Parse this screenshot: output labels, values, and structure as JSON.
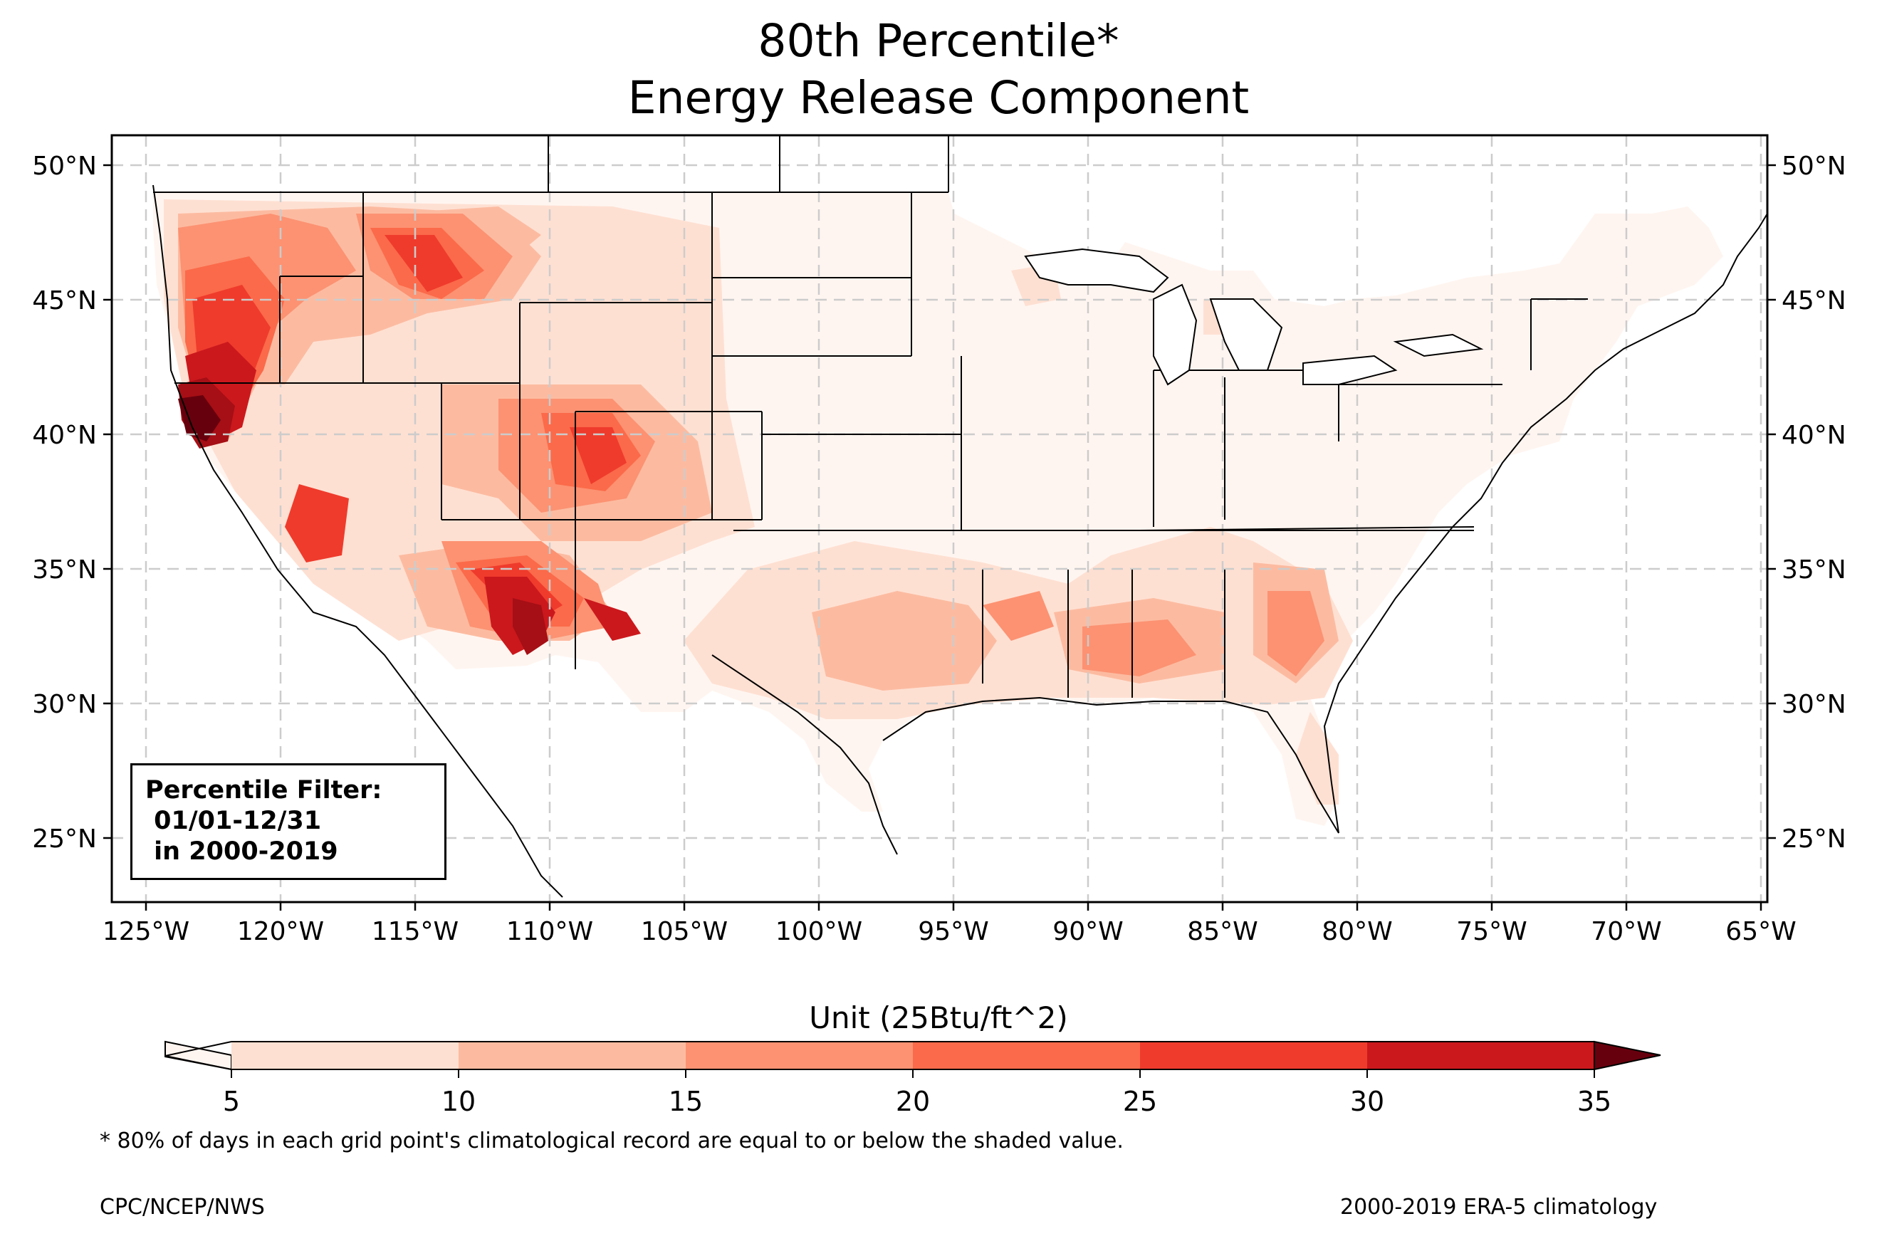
{
  "title": {
    "line1": "80th Percentile*",
    "line2": "Energy Release Component"
  },
  "map": {
    "lon_ticks": [
      "125°W",
      "120°W",
      "115°W",
      "110°W",
      "105°W",
      "100°W",
      "95°W",
      "90°W",
      "85°W",
      "80°W",
      "75°W",
      "70°W",
      "65°W"
    ],
    "lat_ticks": [
      "50°N",
      "45°N",
      "40°N",
      "35°N",
      "30°N",
      "25°N"
    ],
    "lon_range": [
      -126.2,
      -64.8
    ],
    "lat_range": [
      22.8,
      51.2
    ],
    "gridlines": true,
    "colors": {
      "bin_5_10": "#fee0d2",
      "bin_10_15": "#fcbba1",
      "bin_15_20": "#fc9272",
      "bin_20_25": "#fb6a4a",
      "bin_25_30": "#ef3b2c",
      "bin_30_35": "#cb181d",
      "bin_35_plus": "#a50f15",
      "over": "#67000d",
      "under": "#fff5f0"
    }
  },
  "filter_box": {
    "line1": "Percentile Filter:",
    "line2": " 01/01-12/31",
    "line3": " in 2000-2019"
  },
  "colorbar": {
    "title": "Unit (25Btu/ft^2)",
    "ticks": [
      "5",
      "10",
      "15",
      "20",
      "25",
      "30",
      "35"
    ],
    "extend": "both"
  },
  "footnote": "* 80% of days in each grid point's climatological record are equal to or below the shaded value.",
  "credit_left": "CPC/NCEP/NWS",
  "credit_right": "2000-2019 ERA-5 climatology"
}
